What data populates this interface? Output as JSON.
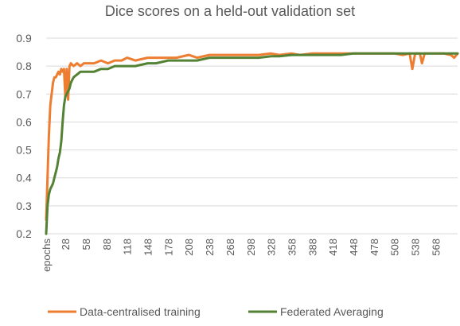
{
  "chart_data": {
    "type": "line",
    "title": "Dice scores on a held-out validation set",
    "xlabel": "",
    "ylabel": "",
    "ylim": [
      0.2,
      0.9
    ],
    "yticks": [
      "0.2",
      "0.3",
      "0.4",
      "0.5",
      "0.6",
      "0.7",
      "0.8",
      "0.9"
    ],
    "xtick_labels": [
      "epochs",
      "28",
      "58",
      "88",
      "118",
      "148",
      "178",
      "208",
      "238",
      "268",
      "298",
      "328",
      "358",
      "388",
      "418",
      "448",
      "478",
      "508",
      "538",
      "568"
    ],
    "xrange": [
      0,
      600
    ],
    "grid": true,
    "legend_position": "bottom",
    "series": [
      {
        "name": "Data-centralised training",
        "color": "#ED7D31",
        "x": [
          0,
          2,
          4,
          6,
          8,
          10,
          12,
          14,
          16,
          18,
          20,
          22,
          24,
          26,
          28,
          30,
          32,
          34,
          36,
          40,
          45,
          50,
          55,
          60,
          70,
          80,
          90,
          100,
          110,
          118,
          130,
          148,
          160,
          178,
          190,
          208,
          220,
          238,
          250,
          268,
          280,
          298,
          310,
          328,
          340,
          358,
          370,
          388,
          400,
          418,
          430,
          448,
          460,
          478,
          490,
          508,
          520,
          530,
          534,
          538,
          545,
          548,
          552,
          558,
          568,
          580,
          590,
          595,
          600
        ],
        "y": [
          0.25,
          0.4,
          0.55,
          0.66,
          0.7,
          0.74,
          0.76,
          0.76,
          0.77,
          0.78,
          0.77,
          0.79,
          0.78,
          0.79,
          0.69,
          0.79,
          0.68,
          0.8,
          0.81,
          0.8,
          0.81,
          0.8,
          0.81,
          0.81,
          0.81,
          0.82,
          0.81,
          0.82,
          0.82,
          0.83,
          0.82,
          0.83,
          0.83,
          0.83,
          0.83,
          0.84,
          0.83,
          0.84,
          0.84,
          0.84,
          0.84,
          0.84,
          0.84,
          0.845,
          0.84,
          0.845,
          0.84,
          0.845,
          0.845,
          0.845,
          0.845,
          0.845,
          0.845,
          0.845,
          0.845,
          0.845,
          0.84,
          0.845,
          0.79,
          0.845,
          0.845,
          0.81,
          0.845,
          0.845,
          0.845,
          0.845,
          0.84,
          0.83,
          0.845
        ]
      },
      {
        "name": "Federated Averaging",
        "color": "#548235",
        "x": [
          0,
          2,
          4,
          6,
          8,
          10,
          12,
          14,
          16,
          18,
          20,
          22,
          24,
          26,
          28,
          30,
          32,
          34,
          36,
          38,
          40,
          45,
          50,
          55,
          60,
          70,
          80,
          90,
          100,
          110,
          118,
          130,
          148,
          160,
          178,
          190,
          208,
          220,
          238,
          250,
          268,
          280,
          298,
          310,
          328,
          340,
          358,
          370,
          388,
          400,
          418,
          430,
          448,
          460,
          478,
          490,
          508,
          520,
          538,
          550,
          568,
          580,
          590,
          600
        ],
        "y": [
          0.2,
          0.3,
          0.34,
          0.36,
          0.37,
          0.38,
          0.4,
          0.42,
          0.44,
          0.47,
          0.49,
          0.53,
          0.6,
          0.66,
          0.69,
          0.7,
          0.71,
          0.72,
          0.74,
          0.75,
          0.76,
          0.77,
          0.78,
          0.78,
          0.78,
          0.78,
          0.79,
          0.79,
          0.8,
          0.8,
          0.8,
          0.8,
          0.81,
          0.81,
          0.82,
          0.82,
          0.82,
          0.82,
          0.83,
          0.83,
          0.83,
          0.83,
          0.83,
          0.83,
          0.835,
          0.835,
          0.84,
          0.84,
          0.84,
          0.84,
          0.84,
          0.84,
          0.845,
          0.845,
          0.845,
          0.845,
          0.845,
          0.845,
          0.845,
          0.845,
          0.845,
          0.845,
          0.845,
          0.845
        ]
      }
    ]
  }
}
